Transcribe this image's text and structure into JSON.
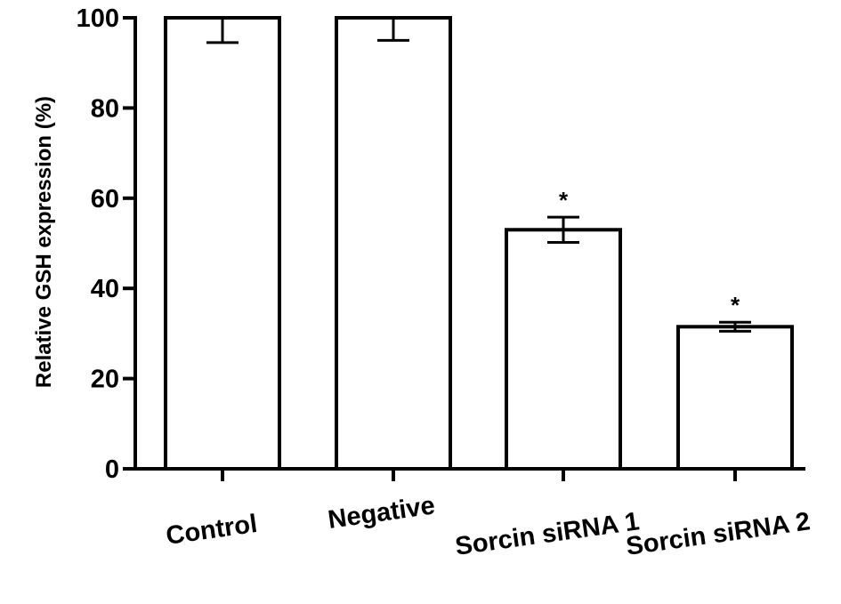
{
  "chart_data": {
    "type": "bar",
    "title": "",
    "xlabel": "",
    "ylabel": "Relative GSH expression (%)",
    "ylim": [
      0,
      100
    ],
    "yticks": [
      0,
      20,
      40,
      60,
      80,
      100
    ],
    "categories": [
      "Control",
      "Negative",
      "Sorcin siRNA 1",
      "Sorcin siRNA 2"
    ],
    "values": [
      100,
      100,
      53,
      31.5
    ],
    "error": [
      5.5,
      5.0,
      2.8,
      1.0
    ],
    "annotations": [
      "",
      "",
      "*",
      "*"
    ],
    "grid": false,
    "bar_fill": "#ffffff",
    "bar_stroke": "#000000"
  }
}
